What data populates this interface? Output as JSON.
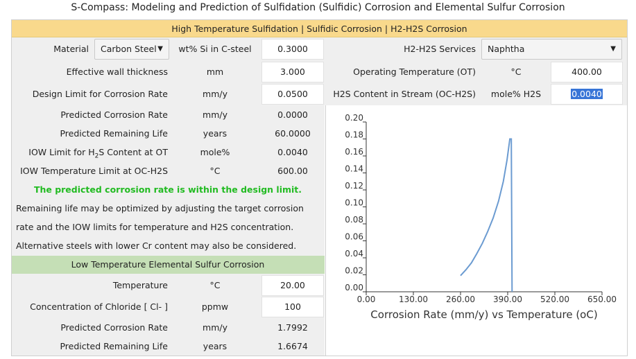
{
  "page_title": "S-Compass: Modeling and Prediction of Sulfidation (Sulfidic) Corrosion and Elemental Sulfur Corrosion",
  "banner": "High Temperature Sulfidation | Sulfidic Corrosion | H2-H2S Corrosion",
  "material": {
    "label": "Material",
    "value": "Carbon Steel"
  },
  "si": {
    "label": "wt% Si in C-steel",
    "value": "0.3000"
  },
  "services": {
    "label": "H2-H2S Services",
    "value": "Naphtha"
  },
  "left_rows": [
    {
      "label": "Effective wall thickness",
      "unit": "mm",
      "value": "3.000",
      "input": true
    },
    {
      "label": "Design Limit for Corrosion Rate",
      "unit": "mm/y",
      "value": "0.0500",
      "input": true
    },
    {
      "label": "Predicted Corrosion Rate",
      "unit": "mm/y",
      "value": "0.0000",
      "input": false
    },
    {
      "label": "Predicted Remaining Life",
      "unit": "years",
      "value": "60.0000",
      "input": false
    },
    {
      "label": "IOW Limit for H2S Content at OT",
      "unit": "mole%",
      "value": "0.0040",
      "input": false
    },
    {
      "label": "IOW Temperature Limit at OC-H2S",
      "unit": "°C",
      "value": "600.00",
      "input": false
    }
  ],
  "iow_h2s_label": {
    "pre": "IOW Limit for H",
    "sub": "2",
    "post": "S Content at OT"
  },
  "right_rows": [
    {
      "label": "Operating Temperature (OT)",
      "unit": "°C",
      "value": "400.00"
    },
    {
      "label": "H2S Content in Stream (OC-H2S)",
      "unit": "mole% H2S",
      "value": "0.0040"
    }
  ],
  "message": "The predicted corrosion rate is within the design limit.",
  "advice": [
    "Remaining life may be optimized by adjusting the target corrosion",
    "rate and the IOW limits for temperature and H2S concentration.",
    "Alternative steels with lower Cr content may also be considered."
  ],
  "low_temp_banner": "Low Temperature Elemental Sulfur Corrosion",
  "low_rows": [
    {
      "label": "Temperature",
      "unit": "°C",
      "value": "20.00",
      "input": true
    },
    {
      "label": "Concentration of Chloride [ Cl- ]",
      "unit": "ppmw",
      "value": "100",
      "input": true
    },
    {
      "label": "Predicted Corrosion Rate",
      "unit": "mm/y",
      "value": "1.7992",
      "input": false
    },
    {
      "label": "Predicted Remaining Life",
      "unit": "years",
      "value": "1.6674",
      "input": false
    }
  ],
  "chart_data": {
    "type": "line",
    "title": "",
    "xlabel": "Corrosion Rate (mm/y) vs Temperature (oC)",
    "ylabel": "",
    "xlim": [
      0,
      650
    ],
    "ylim": [
      0,
      0.2
    ],
    "x_ticks": [
      "0.00",
      "130.00",
      "260.00",
      "390.00",
      "520.00",
      "650.00"
    ],
    "y_ticks": [
      "0.00",
      "0.02",
      "0.04",
      "0.06",
      "0.08",
      "0.10",
      "0.12",
      "0.14",
      "0.16",
      "0.18",
      "0.20"
    ],
    "series": [
      {
        "color": "#6b9bd1",
        "points": [
          [
            260,
            0.019
          ],
          [
            275,
            0.026
          ],
          [
            290,
            0.034
          ],
          [
            305,
            0.045
          ],
          [
            320,
            0.057
          ],
          [
            335,
            0.071
          ],
          [
            350,
            0.087
          ],
          [
            365,
            0.107
          ],
          [
            378,
            0.13
          ],
          [
            388,
            0.155
          ],
          [
            396,
            0.18
          ],
          [
            400,
            0.18
          ],
          [
            402,
            0.0
          ]
        ]
      }
    ]
  }
}
